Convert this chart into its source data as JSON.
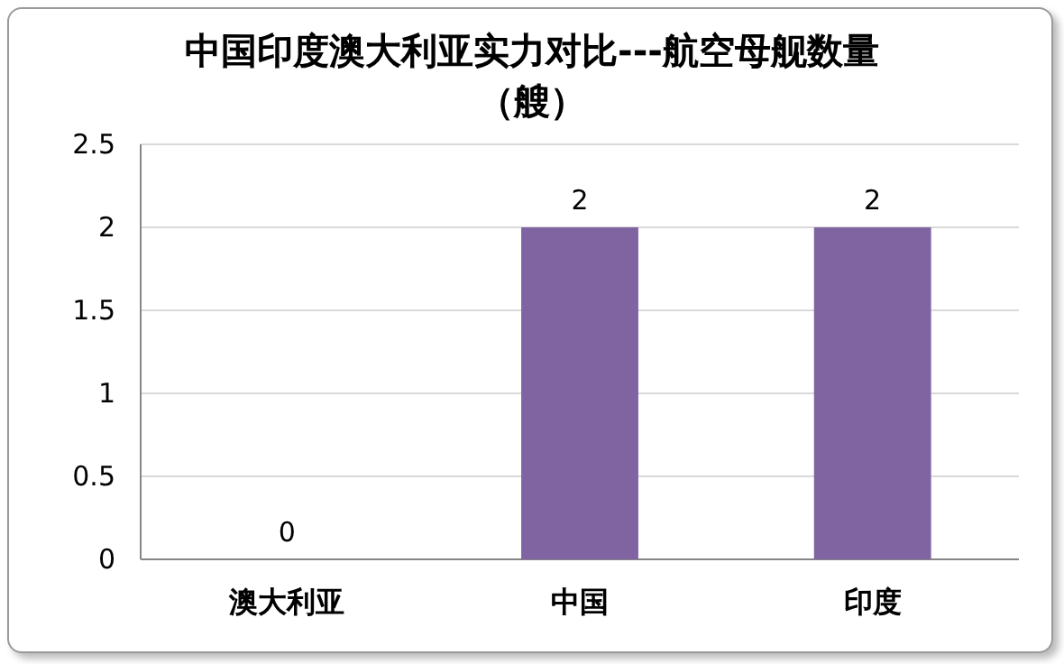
{
  "chart_data": {
    "type": "bar",
    "title": "中国印度澳大利亚实力对比---航空母舰数量（艘）",
    "categories": [
      "澳大利亚",
      "中国",
      "印度"
    ],
    "values": [
      0,
      2,
      2
    ],
    "color": "#8064a2",
    "ylim": [
      0,
      2.5
    ],
    "yticks": [
      0,
      0.5,
      1,
      1.5,
      2,
      2.5
    ],
    "grid": "y",
    "data_labels": true
  }
}
